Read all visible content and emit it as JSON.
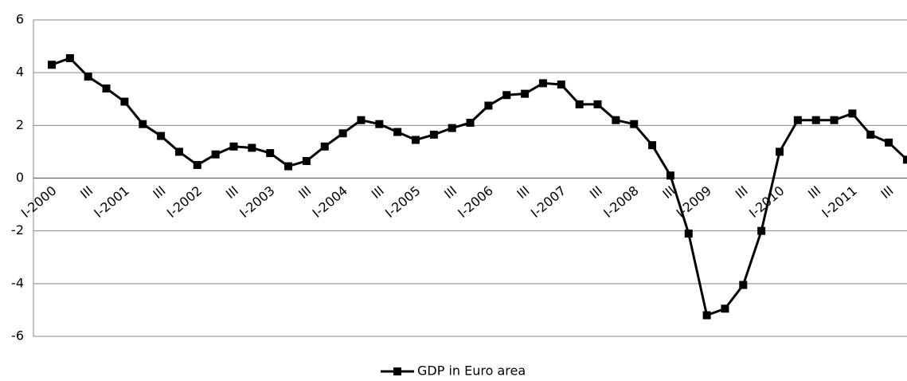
{
  "chart_data": {
    "type": "line",
    "categories": [
      "I-2000",
      null,
      "III",
      null,
      "I-2001",
      null,
      "III",
      null,
      "I-2002",
      null,
      "III",
      null,
      "I-2003",
      null,
      "III",
      null,
      "I-2004",
      null,
      "III",
      null,
      "I-2005",
      null,
      "III",
      null,
      "I-2006",
      null,
      "III",
      null,
      "I-2007",
      null,
      "III",
      null,
      "I-2008",
      null,
      "III",
      null,
      "I-2009",
      null,
      "III",
      null,
      "I-2010",
      null,
      "III",
      null,
      "I-2011",
      null,
      "III",
      null
    ],
    "series": [
      {
        "name": "GDP in Euro area",
        "color": "#000000",
        "values": [
          4.3,
          4.55,
          3.85,
          3.4,
          2.9,
          2.05,
          1.6,
          1.0,
          0.5,
          0.9,
          1.2,
          1.15,
          0.95,
          0.45,
          0.65,
          1.2,
          1.7,
          2.2,
          2.05,
          1.75,
          1.45,
          1.65,
          1.9,
          2.1,
          2.75,
          3.15,
          3.2,
          3.6,
          3.55,
          2.8,
          2.8,
          2.2,
          2.05,
          1.25,
          0.1,
          -2.1,
          -5.2,
          -4.95,
          -4.05,
          -2.0,
          1.0,
          2.2,
          2.2,
          2.2,
          2.45,
          1.65,
          1.35,
          0.7
        ]
      }
    ],
    "ylim": [
      -6,
      6
    ],
    "yticks": [
      -6,
      -4,
      -2,
      0,
      2,
      4,
      6
    ],
    "grid": true,
    "legend": "bottom"
  }
}
